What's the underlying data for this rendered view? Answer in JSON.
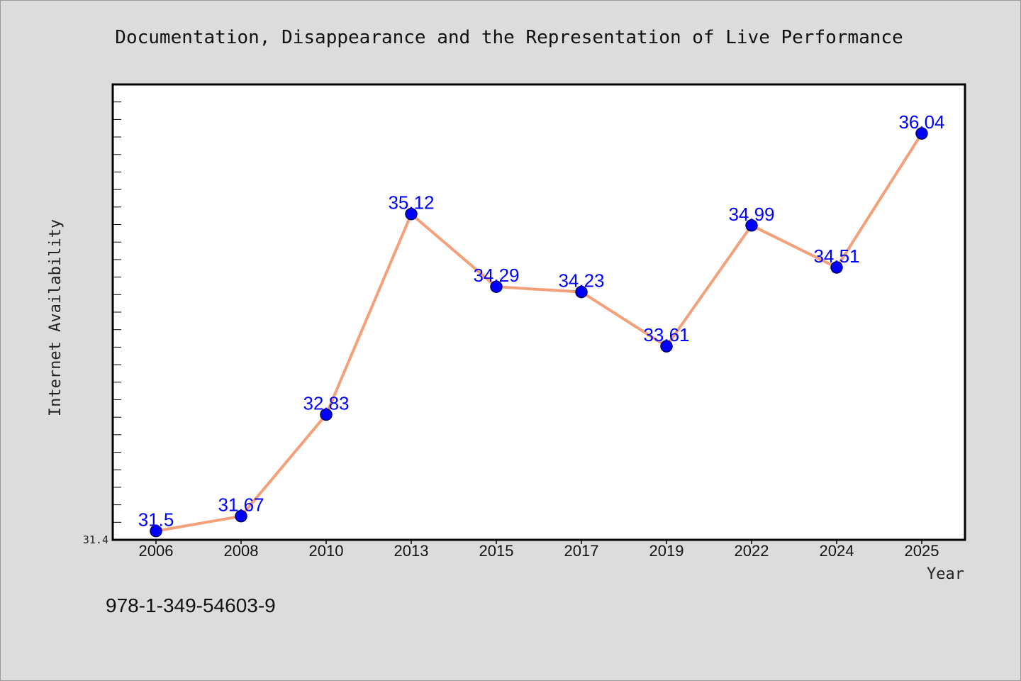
{
  "chart_data": {
    "type": "line",
    "title": "Documentation, Disappearance and the Representation of Live Performance",
    "xlabel": "Year",
    "ylabel": "Internet Availability",
    "categories": [
      "2006",
      "2008",
      "2010",
      "2013",
      "2015",
      "2017",
      "2019",
      "2022",
      "2024",
      "2025"
    ],
    "series": [
      {
        "values": [
          31.5,
          31.67,
          32.83,
          35.12,
          34.29,
          34.23,
          33.61,
          34.99,
          34.51,
          36.04
        ],
        "labels": [
          "31.5",
          "31.67",
          "32.83",
          "35.12",
          "34.29",
          "34.23",
          "33.61",
          "34.99",
          "34.51",
          "36.04"
        ]
      }
    ],
    "ylim": [
      31.4,
      36.6
    ],
    "ytick_labels": [
      "31.4"
    ],
    "grid": false,
    "line_color": "#f4a07a",
    "marker_color": "#0000ff",
    "label_color": "#0000ff"
  },
  "footer": {
    "isbn": "978-1-349-54603-9"
  }
}
